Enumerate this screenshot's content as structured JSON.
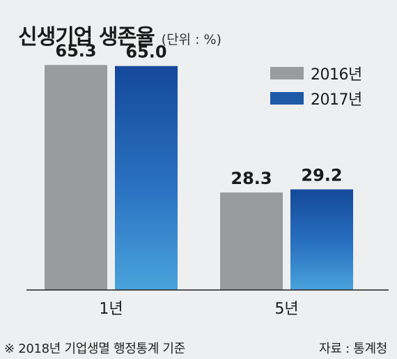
{
  "header": {
    "title": "신생기업 생존율",
    "unit": "(단위 : %)"
  },
  "legend": {
    "items": [
      {
        "label": "2016년",
        "color": "#9a9b9d"
      },
      {
        "label": "2017년",
        "color": "#1e59a8"
      }
    ]
  },
  "footer": {
    "note": "※ 2018년 기업생멸 행정통계 기준",
    "source": "자료 : 통계청"
  },
  "chart_data": {
    "type": "bar",
    "categories": [
      "1년",
      "5년"
    ],
    "series": [
      {
        "name": "2016년",
        "values": [
          65.3,
          28.3
        ],
        "color": "#9a9b9d"
      },
      {
        "name": "2017년",
        "values": [
          65.0,
          29.2
        ],
        "color": "#1e59a8"
      }
    ],
    "value_labels": [
      [
        "65.3",
        "28.3"
      ],
      [
        "65.0",
        "29.2"
      ]
    ],
    "ylim": [
      0,
      70
    ]
  }
}
